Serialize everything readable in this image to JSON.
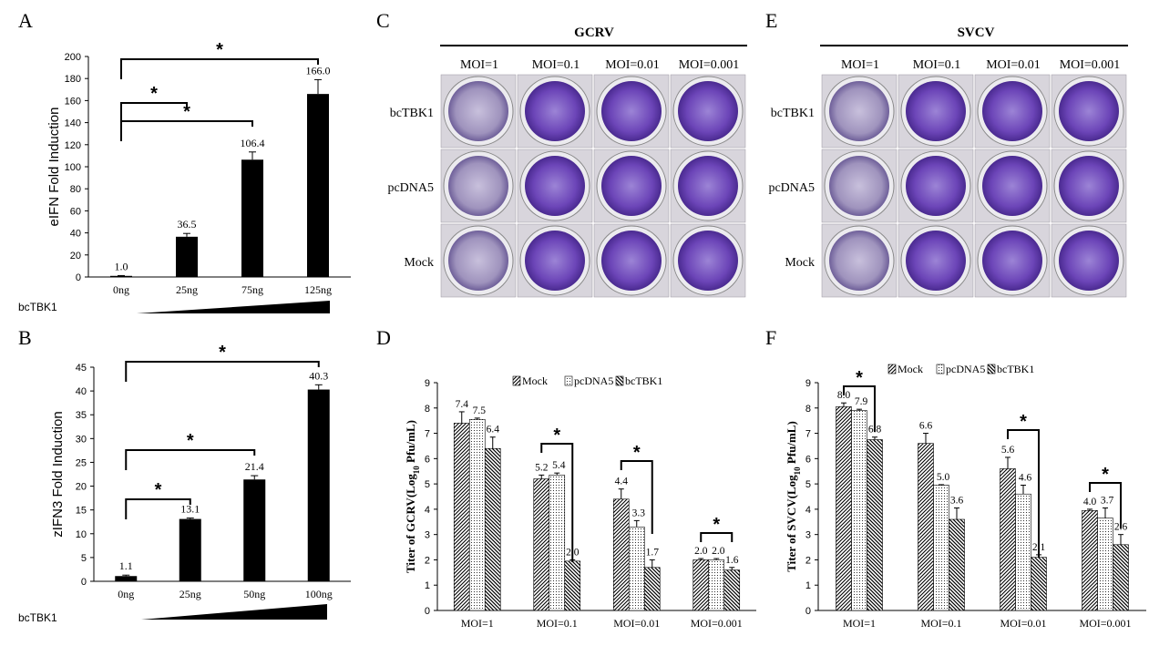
{
  "panel_letters": [
    "A",
    "B",
    "C",
    "D",
    "E",
    "F"
  ],
  "colors": {
    "bar_fill": "#000000",
    "dish_purple": "#6a3fb5",
    "dish_light": "#c9b8e8",
    "hatch": "#000000"
  },
  "chart_data": [
    {
      "panel": "A",
      "type": "bar",
      "categories": [
        "0ng",
        "25ng",
        "75ng",
        "125ng"
      ],
      "values": [
        1.0,
        36.5,
        106.4,
        166.0
      ],
      "errors": [
        0.3,
        3.0,
        7.0,
        13.0
      ],
      "value_labels": [
        "1.0",
        "36.5",
        "106.4",
        "166.0"
      ],
      "ylabel": "eIFN Fold Induction",
      "ylim": [
        0,
        200
      ],
      "yticks": [
        0,
        20,
        40,
        60,
        80,
        100,
        120,
        140,
        160,
        180,
        200
      ],
      "treatment_label": "bcTBK1",
      "significance": [
        {
          "from": 0,
          "to": 1,
          "label": "*"
        },
        {
          "from": 0,
          "to": 2,
          "label": "*"
        },
        {
          "from": 0,
          "to": 3,
          "label": "*"
        }
      ]
    },
    {
      "panel": "B",
      "type": "bar",
      "categories": [
        "0ng",
        "25ng",
        "50ng",
        "100ng"
      ],
      "values": [
        1.1,
        13.1,
        21.4,
        40.3
      ],
      "errors": [
        0.2,
        0.2,
        0.8,
        1.0
      ],
      "value_labels": [
        "1.1",
        "13.1",
        "21.4",
        "40.3"
      ],
      "ylabel": "zIFN3 Fold Induction",
      "ylim": [
        0,
        45
      ],
      "yticks": [
        0,
        5,
        10,
        15,
        20,
        25,
        30,
        35,
        40,
        45
      ],
      "treatment_label": "bcTBK1",
      "significance": [
        {
          "from": 0,
          "to": 1,
          "label": "*"
        },
        {
          "from": 0,
          "to": 2,
          "label": "*"
        },
        {
          "from": 0,
          "to": 3,
          "label": "*"
        }
      ]
    },
    {
      "panel": "D",
      "type": "bar",
      "categories": [
        "MOI=1",
        "MOI=0.1",
        "MOI=0.01",
        "MOI=0.001"
      ],
      "ylabel_main": "Titer of GCRV(Log",
      "ylabel_sub": "10",
      "ylabel_tail": " Pfu/mL)",
      "ylim": [
        0,
        9
      ],
      "yticks": [
        0,
        1,
        2,
        3,
        4,
        5,
        6,
        7,
        8,
        9
      ],
      "series": [
        {
          "name": "Mock",
          "values": [
            7.4,
            5.2,
            4.4,
            2.0
          ],
          "errors": [
            0.45,
            0.15,
            0.4,
            0.05
          ],
          "value_labels": [
            "7.4",
            "5.2",
            "4.4",
            "2.0"
          ],
          "pattern": "diag"
        },
        {
          "name": "pcDNA5",
          "values": [
            7.55,
            5.35,
            3.3,
            2.0
          ],
          "errors": [
            0.05,
            0.08,
            0.25,
            0.05
          ],
          "value_labels": [
            "7.5",
            "5.4",
            "3.3",
            "2.0"
          ],
          "pattern": "dots"
        },
        {
          "name": "bcTBK1",
          "values": [
            6.4,
            1.95,
            1.7,
            1.6
          ],
          "errors": [
            0.45,
            0.05,
            0.3,
            0.1
          ],
          "value_labels": [
            "6.4",
            "2.0",
            "1.7",
            "1.6"
          ],
          "pattern": "back"
        }
      ],
      "significance": [
        {
          "category": 1,
          "label": "*"
        },
        {
          "category": 2,
          "label": "*"
        },
        {
          "category": 3,
          "label": "*"
        }
      ]
    },
    {
      "panel": "F",
      "type": "bar",
      "categories": [
        "MOI=1",
        "MOI=0.1",
        "MOI=0.01",
        "MOI=0.001"
      ],
      "ylabel_main": "Titer of SVCV(Log",
      "ylabel_sub": "10",
      "ylabel_tail": " Pfu/mL)",
      "ylim": [
        0,
        9
      ],
      "yticks": [
        0,
        1,
        2,
        3,
        4,
        5,
        6,
        7,
        8,
        9
      ],
      "series": [
        {
          "name": "Mock",
          "values": [
            8.05,
            6.6,
            5.6,
            3.95
          ],
          "errors": [
            0.15,
            0.4,
            0.45,
            0.05
          ],
          "value_labels": [
            "8.0",
            "6.6",
            "5.6",
            "4.0"
          ],
          "pattern": "diag"
        },
        {
          "name": "pcDNA5",
          "values": [
            7.9,
            4.95,
            4.6,
            3.65
          ],
          "errors": [
            0.05,
            0.02,
            0.35,
            0.4
          ],
          "value_labels": [
            "7.9",
            "5.0",
            "4.6",
            "3.7"
          ],
          "pattern": "dots"
        },
        {
          "name": "bcTBK1",
          "values": [
            6.75,
            3.6,
            2.1,
            2.6
          ],
          "errors": [
            0.1,
            0.45,
            0.1,
            0.4
          ],
          "value_labels": [
            "6.8",
            "3.6",
            "2.1",
            "2.6"
          ],
          "pattern": "back"
        }
      ],
      "significance": [
        {
          "category": 0,
          "label": "*"
        },
        {
          "category": 2,
          "label": "*"
        },
        {
          "category": 3,
          "label": "*"
        }
      ]
    }
  ],
  "plaque_panels": [
    {
      "panel": "C",
      "virus": "GCRV",
      "columns": [
        "MOI=1",
        "MOI=0.1",
        "MOI=0.01",
        "MOI=0.001"
      ],
      "rows": [
        "bcTBK1",
        "pcDNA5",
        "Mock"
      ]
    },
    {
      "panel": "E",
      "virus": "SVCV",
      "columns": [
        "MOI=1",
        "MOI=0.1",
        "MOI=0.01",
        "MOI=0.001"
      ],
      "rows": [
        "bcTBK1",
        "pcDNA5",
        "Mock"
      ]
    }
  ]
}
